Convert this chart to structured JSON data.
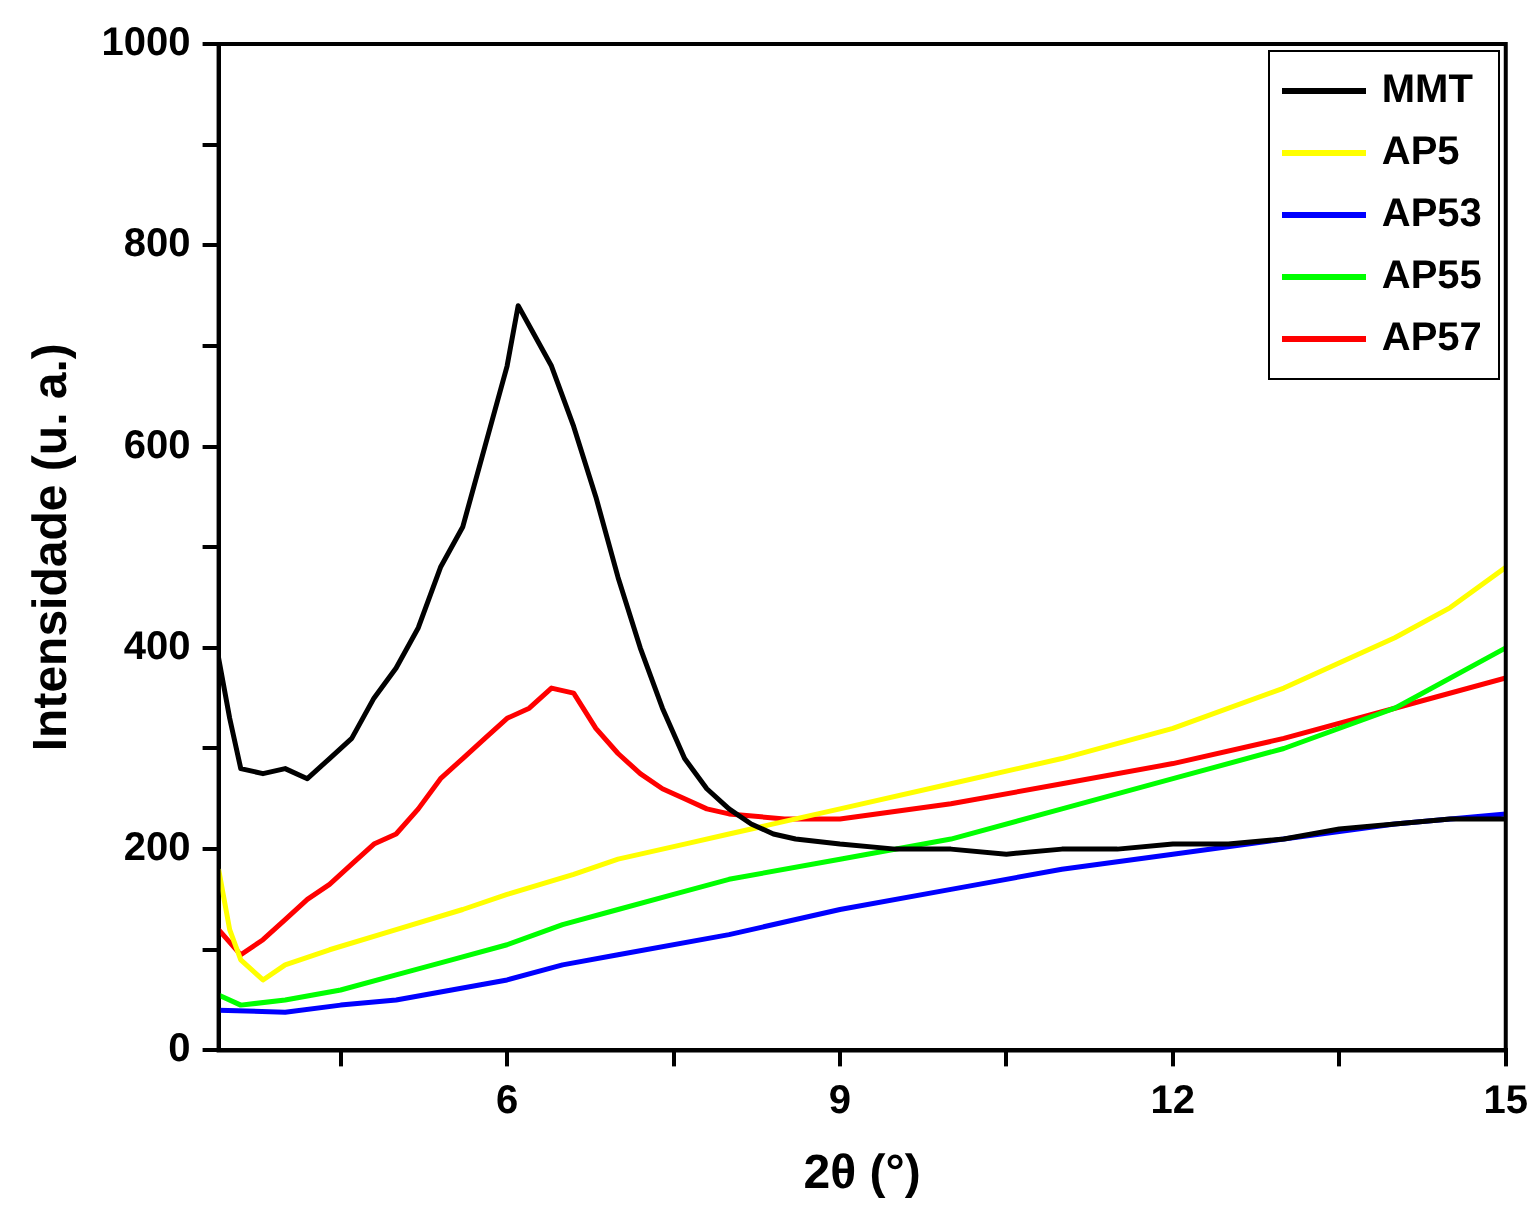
{
  "chart_data": {
    "type": "line",
    "xlabel": "2θ (°)",
    "ylabel": "Intensidade (u. a.)",
    "xlim": [
      3.4,
      15
    ],
    "ylim": [
      0,
      1000
    ],
    "xticks": [
      {
        "value": 4.5,
        "label": null
      },
      6,
      {
        "value": 7.5,
        "label": null
      },
      9,
      {
        "value": 10.5,
        "label": null
      },
      12,
      {
        "value": 13.5,
        "label": null
      },
      15
    ],
    "yticks": [
      0,
      {
        "value": 100,
        "label": null
      },
      200,
      {
        "value": 300,
        "label": null
      },
      400,
      {
        "value": 500,
        "label": null
      },
      600,
      {
        "value": 700,
        "label": null
      },
      800,
      {
        "value": 900,
        "label": null
      },
      1000
    ],
    "grid": false,
    "legend": "top right",
    "marker": "none",
    "line_style": "solid",
    "series": [
      {
        "name": "MMT",
        "color": "#000000",
        "x": [
          3.4,
          3.5,
          3.6,
          3.8,
          4.0,
          4.2,
          4.4,
          4.6,
          4.8,
          5.0,
          5.2,
          5.4,
          5.6,
          5.8,
          6.0,
          6.1,
          6.2,
          6.4,
          6.6,
          6.8,
          7.0,
          7.2,
          7.4,
          7.6,
          7.8,
          8.0,
          8.2,
          8.4,
          8.6,
          9.0,
          9.5,
          10.0,
          10.5,
          11.0,
          11.5,
          12.0,
          12.5,
          13.0,
          13.5,
          14.0,
          14.5,
          15.0
        ],
        "values": [
          390,
          330,
          280,
          275,
          280,
          270,
          290,
          310,
          350,
          380,
          420,
          480,
          520,
          600,
          680,
          740,
          720,
          680,
          620,
          550,
          470,
          400,
          340,
          290,
          260,
          240,
          225,
          215,
          210,
          205,
          200,
          200,
          195,
          200,
          200,
          205,
          205,
          210,
          220,
          225,
          230,
          230
        ]
      },
      {
        "name": "AP5",
        "color": "#ffff00",
        "x": [
          3.4,
          3.5,
          3.6,
          3.8,
          4.0,
          4.4,
          5.0,
          5.6,
          6.0,
          6.6,
          7.0,
          7.6,
          8.0,
          8.6,
          9.0,
          10.0,
          11.0,
          12.0,
          13.0,
          14.0,
          14.5,
          15.0
        ],
        "values": [
          180,
          120,
          90,
          70,
          85,
          100,
          120,
          140,
          155,
          175,
          190,
          205,
          215,
          230,
          240,
          265,
          290,
          320,
          360,
          410,
          440,
          480
        ]
      },
      {
        "name": "AP53",
        "color": "#0000ff",
        "x": [
          3.4,
          4.0,
          4.5,
          5.0,
          5.5,
          6.0,
          6.5,
          7.0,
          8.0,
          9.0,
          10.0,
          11.0,
          12.0,
          13.0,
          14.0,
          15.0
        ],
        "values": [
          40,
          38,
          45,
          50,
          60,
          70,
          85,
          95,
          115,
          140,
          160,
          180,
          195,
          210,
          225,
          235
        ]
      },
      {
        "name": "AP55",
        "color": "#00ff00",
        "x": [
          3.4,
          3.6,
          4.0,
          4.5,
          5.0,
          5.5,
          6.0,
          6.5,
          7.0,
          7.5,
          8.0,
          9.0,
          10.0,
          11.0,
          12.0,
          13.0,
          14.0,
          15.0
        ],
        "values": [
          55,
          45,
          50,
          60,
          75,
          90,
          105,
          125,
          140,
          155,
          170,
          190,
          210,
          240,
          270,
          300,
          340,
          400
        ]
      },
      {
        "name": "AP57",
        "color": "#ff0000",
        "x": [
          3.4,
          3.6,
          3.8,
          4.0,
          4.2,
          4.4,
          4.6,
          4.8,
          5.0,
          5.2,
          5.4,
          5.6,
          5.8,
          6.0,
          6.2,
          6.4,
          6.6,
          6.8,
          7.0,
          7.2,
          7.4,
          7.6,
          7.8,
          8.0,
          8.5,
          9.0,
          10.0,
          11.0,
          12.0,
          13.0,
          14.0,
          15.0
        ],
        "values": [
          120,
          95,
          110,
          130,
          150,
          165,
          185,
          205,
          215,
          240,
          270,
          290,
          310,
          330,
          340,
          360,
          355,
          320,
          295,
          275,
          260,
          250,
          240,
          235,
          230,
          230,
          245,
          265,
          285,
          310,
          340,
          370
        ]
      }
    ]
  }
}
